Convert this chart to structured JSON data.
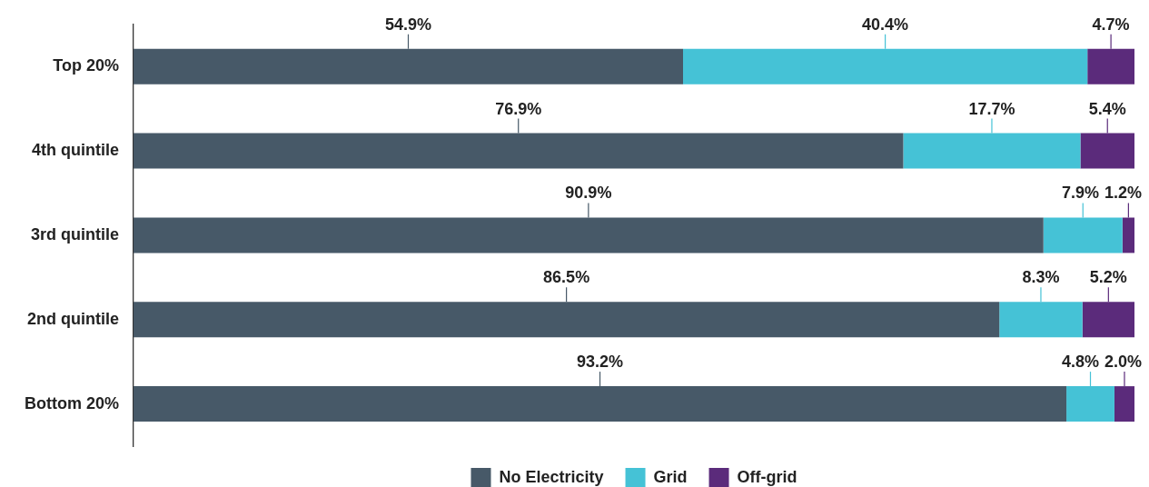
{
  "chart_data": {
    "type": "bar",
    "orientation": "horizontal",
    "stacked": true,
    "categories": [
      "Top 20%",
      "4th quintile",
      "3rd quintile",
      "2nd quintile",
      "Bottom 20%"
    ],
    "series": [
      {
        "name": "No Electricity",
        "color": "#475968",
        "values": [
          54.9,
          76.9,
          90.9,
          86.5,
          93.2
        ],
        "value_labels": [
          "54.9%",
          "76.9%",
          "90.9%",
          "86.5%",
          "93.2%"
        ]
      },
      {
        "name": "Grid",
        "color": "#45c2d6",
        "values": [
          40.4,
          17.7,
          7.9,
          8.3,
          4.8
        ],
        "value_labels": [
          "40.4%",
          "17.7%",
          "7.9%",
          "8.3%",
          "4.8%"
        ]
      },
      {
        "name": "Off-grid",
        "color": "#5b2b7b",
        "values": [
          4.7,
          5.4,
          1.2,
          5.2,
          2.0
        ],
        "value_labels": [
          "4.7%",
          "5.4%",
          "1.2%",
          "5.2%",
          "2.0%"
        ]
      }
    ],
    "legend": "bottom",
    "grid": false,
    "tick_labels": "y"
  }
}
